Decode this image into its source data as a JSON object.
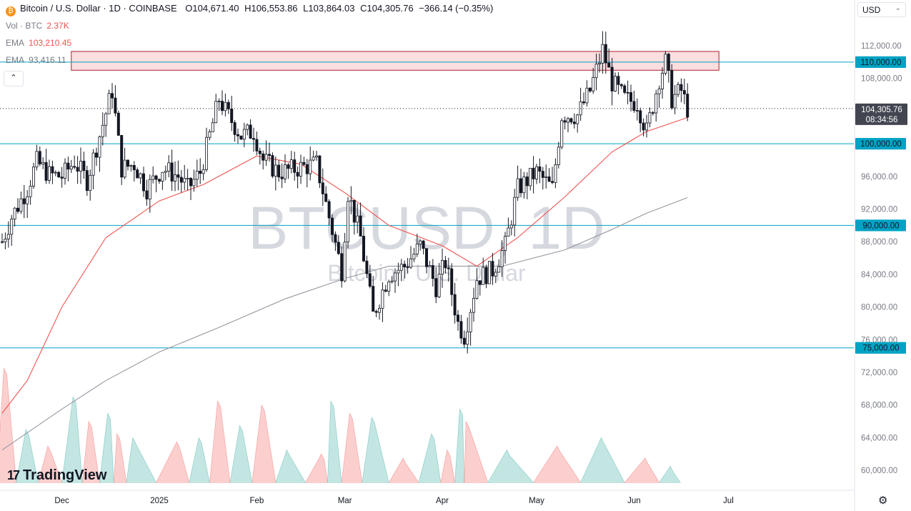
{
  "header": {
    "coin_icon": "bitcoin-icon",
    "symbol": "Bitcoin / U.S. Dollar · 1D · COINBASE",
    "o_label": "O",
    "o_value": "104,671.40",
    "h_label": "H",
    "h_value": "106,553.86",
    "l_label": "L",
    "l_value": "103,864.03",
    "c_label": "C",
    "c_value": "104,305.76",
    "change": "−366.14 (−0.35%)"
  },
  "indicators": [
    {
      "label": "Vol · BTC",
      "value": "2.37K",
      "color": "#ef5350"
    },
    {
      "label": "EMA",
      "value": "103,210.45",
      "color": "#ef5350"
    },
    {
      "label": "EMA",
      "value": "93,416.11",
      "color": "#787b86"
    }
  ],
  "currency": "USD",
  "collapse_glyph": "⌃",
  "watermark": {
    "main": "BTCUSD, 1D",
    "sub": "Bitcoin / U.S. Dollar"
  },
  "logo": "TradingView",
  "settings_icon": "settings-icon",
  "colors": {
    "up": "#26a69a",
    "down": "#ef5350",
    "candle": "#131722",
    "ema50": "#ef5350",
    "ema200": "#9598a1",
    "hline": "#00a3c4",
    "zone": "#f8d0d3",
    "zone_border": "#ad1f2a"
  },
  "chart_data": {
    "type": "candlestick",
    "title": "Bitcoin / U.S. Dollar · 1D · COINBASE",
    "ylim": [
      58000,
      116000
    ],
    "y_ticks": [
      60000,
      64000,
      68000,
      72000,
      76000,
      80000,
      84000,
      88000,
      92000,
      96000,
      100000,
      104000,
      108000,
      112000
    ],
    "y_tick_labels": [
      "60,000.00",
      "64,000.00",
      "68,000.00",
      "72,000.00",
      "76,000.00",
      "80,000.00",
      "84,000.00",
      "88,000.00",
      "92,000.00",
      "96,000.00",
      "100,000.00",
      "104,000.00",
      "108,000.00",
      "112,000.00"
    ],
    "x_labels": [
      {
        "label": "Dec",
        "date": "2024-12-01"
      },
      {
        "label": "2025",
        "date": "2025-01-01"
      },
      {
        "label": "Feb",
        "date": "2025-02-01"
      },
      {
        "label": "Mar",
        "date": "2025-03-01"
      },
      {
        "label": "Apr",
        "date": "2025-04-01"
      },
      {
        "label": "May",
        "date": "2025-05-01"
      },
      {
        "label": "Jun",
        "date": "2025-06-01"
      },
      {
        "label": "Jul",
        "date": "2025-07-01"
      }
    ],
    "horizontal_lines": [
      {
        "value": 110000,
        "label": "110,000.00"
      },
      {
        "value": 100000,
        "label": "100,000.00"
      },
      {
        "value": 90000,
        "label": "90,000.00"
      },
      {
        "value": 75000,
        "label": "75,000.00"
      }
    ],
    "resistance_zone": {
      "from": "2024-12-04",
      "to": "2025-06-28",
      "low": 109000,
      "high": 111300
    },
    "last_price": {
      "value": 104305.76,
      "label": "104,305.76",
      "countdown": "08:34:56"
    },
    "price_path": [
      [
        "2024-11-12",
        88000
      ],
      [
        "2024-11-15",
        91000
      ],
      [
        "2024-11-20",
        94500
      ],
      [
        "2024-11-23",
        97800
      ],
      [
        "2024-11-27",
        96200
      ],
      [
        "2024-12-01",
        96000
      ],
      [
        "2024-12-05",
        97800
      ],
      [
        "2024-12-09",
        95500
      ],
      [
        "2024-12-13",
        101000
      ],
      [
        "2024-12-17",
        106500
      ],
      [
        "2024-12-20",
        97000
      ],
      [
        "2024-12-24",
        97500
      ],
      [
        "2024-12-28",
        94500
      ],
      [
        "2025-01-02",
        97000
      ],
      [
        "2025-01-07",
        96000
      ],
      [
        "2025-01-10",
        94500
      ],
      [
        "2025-01-14",
        96500
      ],
      [
        "2025-01-20",
        105500
      ],
      [
        "2025-01-22",
        104000
      ],
      [
        "2025-01-27",
        101000
      ],
      [
        "2025-01-31",
        101500
      ],
      [
        "2025-02-03",
        98000
      ],
      [
        "2025-02-08",
        96500
      ],
      [
        "2025-02-14",
        97000
      ],
      [
        "2025-02-20",
        97500
      ],
      [
        "2025-02-24",
        91000
      ],
      [
        "2025-02-28",
        84500
      ],
      [
        "2025-03-02",
        94000
      ],
      [
        "2025-03-06",
        88500
      ],
      [
        "2025-03-10",
        79000
      ],
      [
        "2025-03-15",
        84000
      ],
      [
        "2025-03-20",
        85000
      ],
      [
        "2025-03-25",
        87500
      ],
      [
        "2025-03-30",
        82500
      ],
      [
        "2025-04-02",
        85500
      ],
      [
        "2025-04-06",
        78000
      ],
      [
        "2025-04-08",
        76500
      ],
      [
        "2025-04-12",
        83500
      ],
      [
        "2025-04-17",
        84500
      ],
      [
        "2025-04-21",
        87500
      ],
      [
        "2025-04-25",
        94500
      ],
      [
        "2025-05-01",
        96500
      ],
      [
        "2025-05-06",
        94500
      ],
      [
        "2025-05-09",
        103500
      ],
      [
        "2025-05-14",
        103500
      ],
      [
        "2025-05-18",
        106500
      ],
      [
        "2025-05-22",
        111500
      ],
      [
        "2025-05-25",
        107500
      ],
      [
        "2025-05-29",
        105500
      ],
      [
        "2025-06-02",
        105000
      ],
      [
        "2025-06-05",
        101500
      ],
      [
        "2025-06-09",
        108000
      ],
      [
        "2025-06-11",
        110000
      ],
      [
        "2025-06-13",
        105500
      ],
      [
        "2025-06-16",
        106500
      ],
      [
        "2025-06-18",
        104300
      ]
    ],
    "ema_50": [
      [
        "2024-11-12",
        67000
      ],
      [
        "2024-11-20",
        71000
      ],
      [
        "2024-12-01",
        80000
      ],
      [
        "2024-12-15",
        88500
      ],
      [
        "2025-01-01",
        93000
      ],
      [
        "2025-01-15",
        95000
      ],
      [
        "2025-02-01",
        98500
      ],
      [
        "2025-02-15",
        97500
      ],
      [
        "2025-03-01",
        94000
      ],
      [
        "2025-03-15",
        90000
      ],
      [
        "2025-04-01",
        87500
      ],
      [
        "2025-04-12",
        85000
      ],
      [
        "2025-04-25",
        88500
      ],
      [
        "2025-05-10",
        93500
      ],
      [
        "2025-05-25",
        99000
      ],
      [
        "2025-06-05",
        101500
      ],
      [
        "2025-06-18",
        103200
      ]
    ],
    "ema_200": [
      [
        "2024-11-12",
        62500
      ],
      [
        "2024-12-01",
        67500
      ],
      [
        "2024-12-15",
        71000
      ],
      [
        "2025-01-01",
        74500
      ],
      [
        "2025-01-20",
        77500
      ],
      [
        "2025-02-10",
        81000
      ],
      [
        "2025-03-01",
        83500
      ],
      [
        "2025-03-15",
        85000
      ],
      [
        "2025-04-01",
        85000
      ],
      [
        "2025-04-20",
        85000
      ],
      [
        "2025-05-10",
        87000
      ],
      [
        "2025-05-25",
        89500
      ],
      [
        "2025-06-05",
        91500
      ],
      [
        "2025-06-18",
        93400
      ]
    ],
    "volume_peaks": [
      [
        "2024-11-13",
        72500
      ],
      [
        "2024-11-20",
        65000
      ],
      [
        "2024-11-27",
        63000
      ],
      [
        "2024-12-05",
        69000
      ],
      [
        "2024-12-10",
        66000
      ],
      [
        "2024-12-16",
        67000
      ],
      [
        "2024-12-19",
        64500
      ],
      [
        "2024-12-24",
        64000
      ],
      [
        "2025-01-07",
        63500
      ],
      [
        "2025-01-14",
        64000
      ],
      [
        "2025-01-20",
        68500
      ],
      [
        "2025-01-27",
        65500
      ],
      [
        "2025-02-03",
        68000
      ],
      [
        "2025-02-11",
        62500
      ],
      [
        "2025-02-22",
        62000
      ],
      [
        "2025-02-25",
        68500
      ],
      [
        "2025-03-03",
        67000
      ],
      [
        "2025-03-10",
        66500
      ],
      [
        "2025-03-20",
        61500
      ],
      [
        "2025-03-29",
        64500
      ],
      [
        "2025-04-03",
        62500
      ],
      [
        "2025-04-07",
        67500
      ],
      [
        "2025-04-09",
        66000
      ],
      [
        "2025-04-22",
        62500
      ],
      [
        "2025-05-08",
        63000
      ],
      [
        "2025-05-22",
        64000
      ],
      [
        "2025-06-05",
        61500
      ],
      [
        "2025-06-13",
        60500
      ]
    ]
  }
}
